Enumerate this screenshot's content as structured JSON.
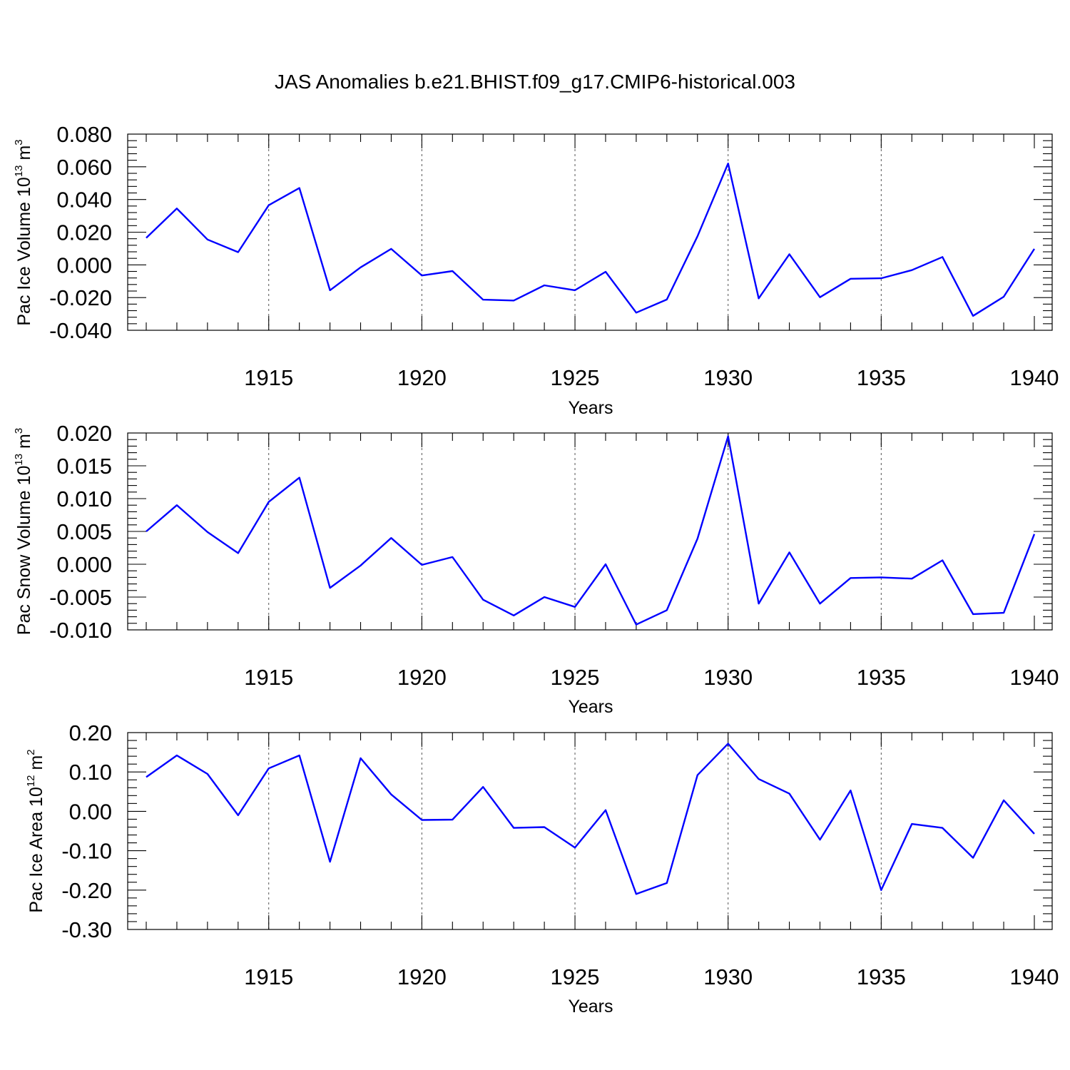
{
  "figure": {
    "title": "JAS Anomalies b.e21.BHIST.f09_g17.CMIP6-historical.003"
  },
  "colors": {
    "line": "#0000ff",
    "axis": "#000000",
    "grid": "#555555"
  },
  "chart_data": [
    {
      "type": "line",
      "title": "JAS Anomalies b.e21.BHIST.f09_g17.CMIP6-historical.003",
      "xlabel": "Years",
      "ylabel_main": "Pac Ice Volume 10",
      "ylabel_exp": "13",
      "ylabel_unit": " m",
      "ylabel_unit_exp": "3",
      "xlim": [
        1911,
        1940
      ],
      "ylim": [
        -0.04,
        0.08
      ],
      "yticks": [
        -0.04,
        -0.02,
        0.0,
        0.02,
        0.04,
        0.06,
        0.08
      ],
      "yticklabels": [
        "-0.040",
        "-0.020",
        "0.000",
        "0.020",
        "0.040",
        "0.060",
        "0.080"
      ],
      "xticks": [
        1915,
        1920,
        1925,
        1930,
        1935,
        1940
      ],
      "xticklabels": [
        "1915",
        "1920",
        "1925",
        "1930",
        "1935",
        "1940"
      ],
      "grid": "x-major dashed",
      "x": [
        1911,
        1912,
        1913,
        1914,
        1915,
        1916,
        1917,
        1918,
        1919,
        1920,
        1921,
        1922,
        1923,
        1924,
        1925,
        1926,
        1927,
        1928,
        1929,
        1930,
        1931,
        1932,
        1933,
        1934,
        1935,
        1936,
        1937,
        1938,
        1939,
        1940
      ],
      "values": [
        0.0165,
        0.0345,
        0.0155,
        0.0078,
        0.0365,
        0.047,
        -0.0155,
        -0.0015,
        0.0098,
        -0.0065,
        -0.0038,
        -0.0213,
        -0.0218,
        -0.0125,
        -0.0155,
        -0.0042,
        -0.0292,
        -0.0212,
        0.0175,
        0.062,
        -0.0205,
        0.0065,
        -0.0198,
        -0.0085,
        -0.0082,
        -0.0032,
        0.0048,
        -0.0312,
        -0.0195,
        0.0098
      ]
    },
    {
      "type": "line",
      "xlabel": "Years",
      "ylabel_main": "Pac Snow Volume 10",
      "ylabel_exp": "13",
      "ylabel_unit": " m",
      "ylabel_unit_exp": "3",
      "xlim": [
        1911,
        1940
      ],
      "ylim": [
        -0.01,
        0.02
      ],
      "yticks": [
        -0.01,
        -0.005,
        0.0,
        0.005,
        0.01,
        0.015,
        0.02
      ],
      "yticklabels": [
        "-0.010",
        "-0.005",
        "0.000",
        "0.005",
        "0.010",
        "0.015",
        "0.020"
      ],
      "xticks": [
        1915,
        1920,
        1925,
        1930,
        1935,
        1940
      ],
      "xticklabels": [
        "1915",
        "1920",
        "1925",
        "1930",
        "1935",
        "1940"
      ],
      "grid": "x-major dashed",
      "x": [
        1911,
        1912,
        1913,
        1914,
        1915,
        1916,
        1917,
        1918,
        1919,
        1920,
        1921,
        1922,
        1923,
        1924,
        1925,
        1926,
        1927,
        1928,
        1929,
        1930,
        1931,
        1932,
        1933,
        1934,
        1935,
        1936,
        1937,
        1938,
        1939,
        1940
      ],
      "values": [
        0.005,
        0.009,
        0.0049,
        0.0017,
        0.0095,
        0.0132,
        -0.0036,
        -0.0002,
        0.004,
        -0.0001,
        0.0011,
        -0.0054,
        -0.0078,
        -0.005,
        -0.0065,
        0.0,
        -0.0092,
        -0.007,
        0.0039,
        0.0195,
        -0.006,
        0.0018,
        -0.006,
        -0.0021,
        -0.002,
        -0.0022,
        0.0006,
        -0.0076,
        -0.0074,
        0.0046
      ]
    },
    {
      "type": "line",
      "xlabel": "Years",
      "ylabel_main": "Pac Ice Area 10",
      "ylabel_exp": "12",
      "ylabel_unit": " m",
      "ylabel_unit_exp": "2",
      "xlim": [
        1911,
        1940
      ],
      "ylim": [
        -0.3,
        0.2
      ],
      "yticks": [
        -0.3,
        -0.2,
        -0.1,
        0.0,
        0.1,
        0.2
      ],
      "yticklabels": [
        "-0.30",
        "-0.20",
        "-0.10",
        "0.00",
        "0.10",
        "0.20"
      ],
      "xticks": [
        1915,
        1920,
        1925,
        1930,
        1935,
        1940
      ],
      "xticklabels": [
        "1915",
        "1920",
        "1925",
        "1930",
        "1935",
        "1940"
      ],
      "grid": "x-major dashed",
      "x": [
        1911,
        1912,
        1913,
        1914,
        1915,
        1916,
        1917,
        1918,
        1919,
        1920,
        1921,
        1922,
        1923,
        1924,
        1925,
        1926,
        1927,
        1928,
        1929,
        1930,
        1931,
        1932,
        1933,
        1934,
        1935,
        1936,
        1937,
        1938,
        1939,
        1940
      ],
      "values": [
        0.087,
        0.142,
        0.095,
        -0.01,
        0.109,
        0.142,
        -0.128,
        0.135,
        0.043,
        -0.022,
        -0.021,
        0.062,
        -0.042,
        -0.04,
        -0.092,
        0.003,
        -0.21,
        -0.182,
        0.092,
        0.172,
        0.082,
        0.045,
        -0.072,
        0.053,
        -0.2,
        -0.032,
        -0.042,
        -0.118,
        0.028,
        -0.057
      ]
    }
  ]
}
